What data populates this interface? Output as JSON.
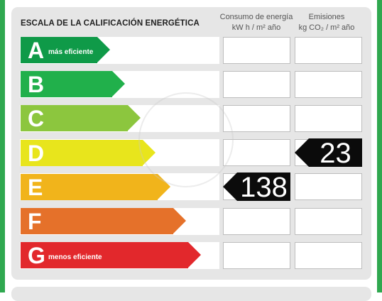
{
  "title": "ESCALA DE LA CALIFICACIÓN ENERGÉTICA",
  "headers": {
    "consumo_line1": "Consumo de energía",
    "consumo_line2": "kW h  / m² año",
    "emisiones_line1": "Emisiones",
    "emisiones_line2": "kg CO₂  / m² año"
  },
  "ratings": [
    {
      "letter": "A",
      "sub": "más eficiente",
      "color": "#0f9a48"
    },
    {
      "letter": "B",
      "sub": "",
      "color": "#21b04b"
    },
    {
      "letter": "C",
      "sub": "",
      "color": "#8cc63e"
    },
    {
      "letter": "D",
      "sub": "",
      "color": "#e8e51c"
    },
    {
      "letter": "E",
      "sub": "",
      "color": "#f1b41b"
    },
    {
      "letter": "F",
      "sub": "",
      "color": "#e5712a"
    },
    {
      "letter": "G",
      "sub": "menos eficiente",
      "color": "#e2282c"
    }
  ],
  "consumo": {
    "rating": "E",
    "value": "138"
  },
  "emisiones": {
    "rating": "D",
    "value": "23"
  }
}
